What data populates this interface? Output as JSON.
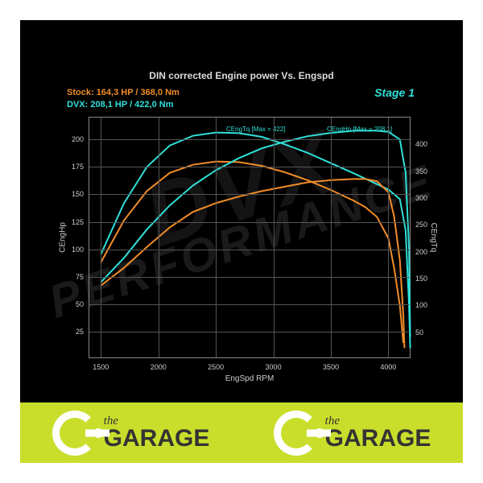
{
  "chart": {
    "type": "line",
    "title": "DIN corrected Engine power Vs. Engspd",
    "stage_label": "Stage 1",
    "legend": {
      "stock_label": "Stock:",
      "stock_value": "164,3 HP / 368,0 Nm",
      "dvx_label": "DVX:",
      "dvx_value": "208,1 HP / 422,0 Nm"
    },
    "xlabel": "EngSpd RPM",
    "ylabel_left": "CEngHp",
    "ylabel_right": "CEngTq",
    "xlim": [
      1400,
      4200
    ],
    "ylim_left": [
      0,
      220
    ],
    "ylim_right": [
      0,
      450
    ],
    "xticks": [
      1500,
      2000,
      2500,
      3000,
      3500,
      4000
    ],
    "yticks_left": [
      25,
      50,
      75,
      100,
      125,
      150,
      175,
      200
    ],
    "yticks_right": [
      50,
      100,
      150,
      200,
      250,
      300,
      350,
      400
    ],
    "colors": {
      "background": "#000000",
      "grid": "#555555",
      "axis": "#888888",
      "text": "#cccccc",
      "stock": "#f28c28",
      "dvx": "#2fe0d8",
      "watermark": "#1a1a1a",
      "footer_bg": "#c9de2b"
    },
    "line_width": 2,
    "annotations": {
      "tq_max": "CEngTq [Max = 422]",
      "hp_max": "CEngHp [Max = 208,1]"
    },
    "series": {
      "stock_hp": [
        [
          1500,
          67
        ],
        [
          1700,
          83
        ],
        [
          1900,
          102
        ],
        [
          2100,
          120
        ],
        [
          2300,
          134
        ],
        [
          2500,
          142
        ],
        [
          2700,
          148
        ],
        [
          2900,
          153
        ],
        [
          3100,
          157
        ],
        [
          3300,
          161
        ],
        [
          3500,
          163
        ],
        [
          3700,
          164
        ],
        [
          3800,
          164
        ],
        [
          3900,
          162
        ],
        [
          4000,
          152
        ],
        [
          4050,
          130
        ],
        [
          4100,
          90
        ],
        [
          4130,
          40
        ],
        [
          4140,
          10
        ]
      ],
      "dvx_hp": [
        [
          1500,
          70
        ],
        [
          1700,
          92
        ],
        [
          1900,
          118
        ],
        [
          2100,
          140
        ],
        [
          2300,
          158
        ],
        [
          2500,
          172
        ],
        [
          2700,
          183
        ],
        [
          2900,
          192
        ],
        [
          3100,
          198
        ],
        [
          3300,
          203
        ],
        [
          3500,
          206
        ],
        [
          3700,
          208
        ],
        [
          3900,
          208
        ],
        [
          4000,
          207
        ],
        [
          4100,
          200
        ],
        [
          4150,
          170
        ],
        [
          4180,
          100
        ],
        [
          4190,
          20
        ]
      ],
      "stock_tq": [
        [
          1500,
          180
        ],
        [
          1700,
          258
        ],
        [
          1900,
          313
        ],
        [
          2100,
          347
        ],
        [
          2300,
          362
        ],
        [
          2500,
          368
        ],
        [
          2700,
          367
        ],
        [
          2900,
          360
        ],
        [
          3100,
          348
        ],
        [
          3300,
          333
        ],
        [
          3500,
          315
        ],
        [
          3700,
          295
        ],
        [
          3800,
          283
        ],
        [
          3900,
          265
        ],
        [
          4000,
          225
        ],
        [
          4050,
          170
        ],
        [
          4100,
          100
        ],
        [
          4130,
          30
        ]
      ],
      "dvx_tq": [
        [
          1500,
          195
        ],
        [
          1700,
          290
        ],
        [
          1900,
          358
        ],
        [
          2100,
          398
        ],
        [
          2300,
          416
        ],
        [
          2500,
          422
        ],
        [
          2700,
          421
        ],
        [
          2900,
          414
        ],
        [
          3100,
          400
        ],
        [
          3300,
          384
        ],
        [
          3500,
          365
        ],
        [
          3700,
          346
        ],
        [
          3900,
          326
        ],
        [
          4000,
          316
        ],
        [
          4100,
          298
        ],
        [
          4150,
          240
        ],
        [
          4180,
          100
        ],
        [
          4190,
          20
        ]
      ]
    }
  },
  "footer": {
    "the": "the",
    "garage": "GARAGE"
  }
}
